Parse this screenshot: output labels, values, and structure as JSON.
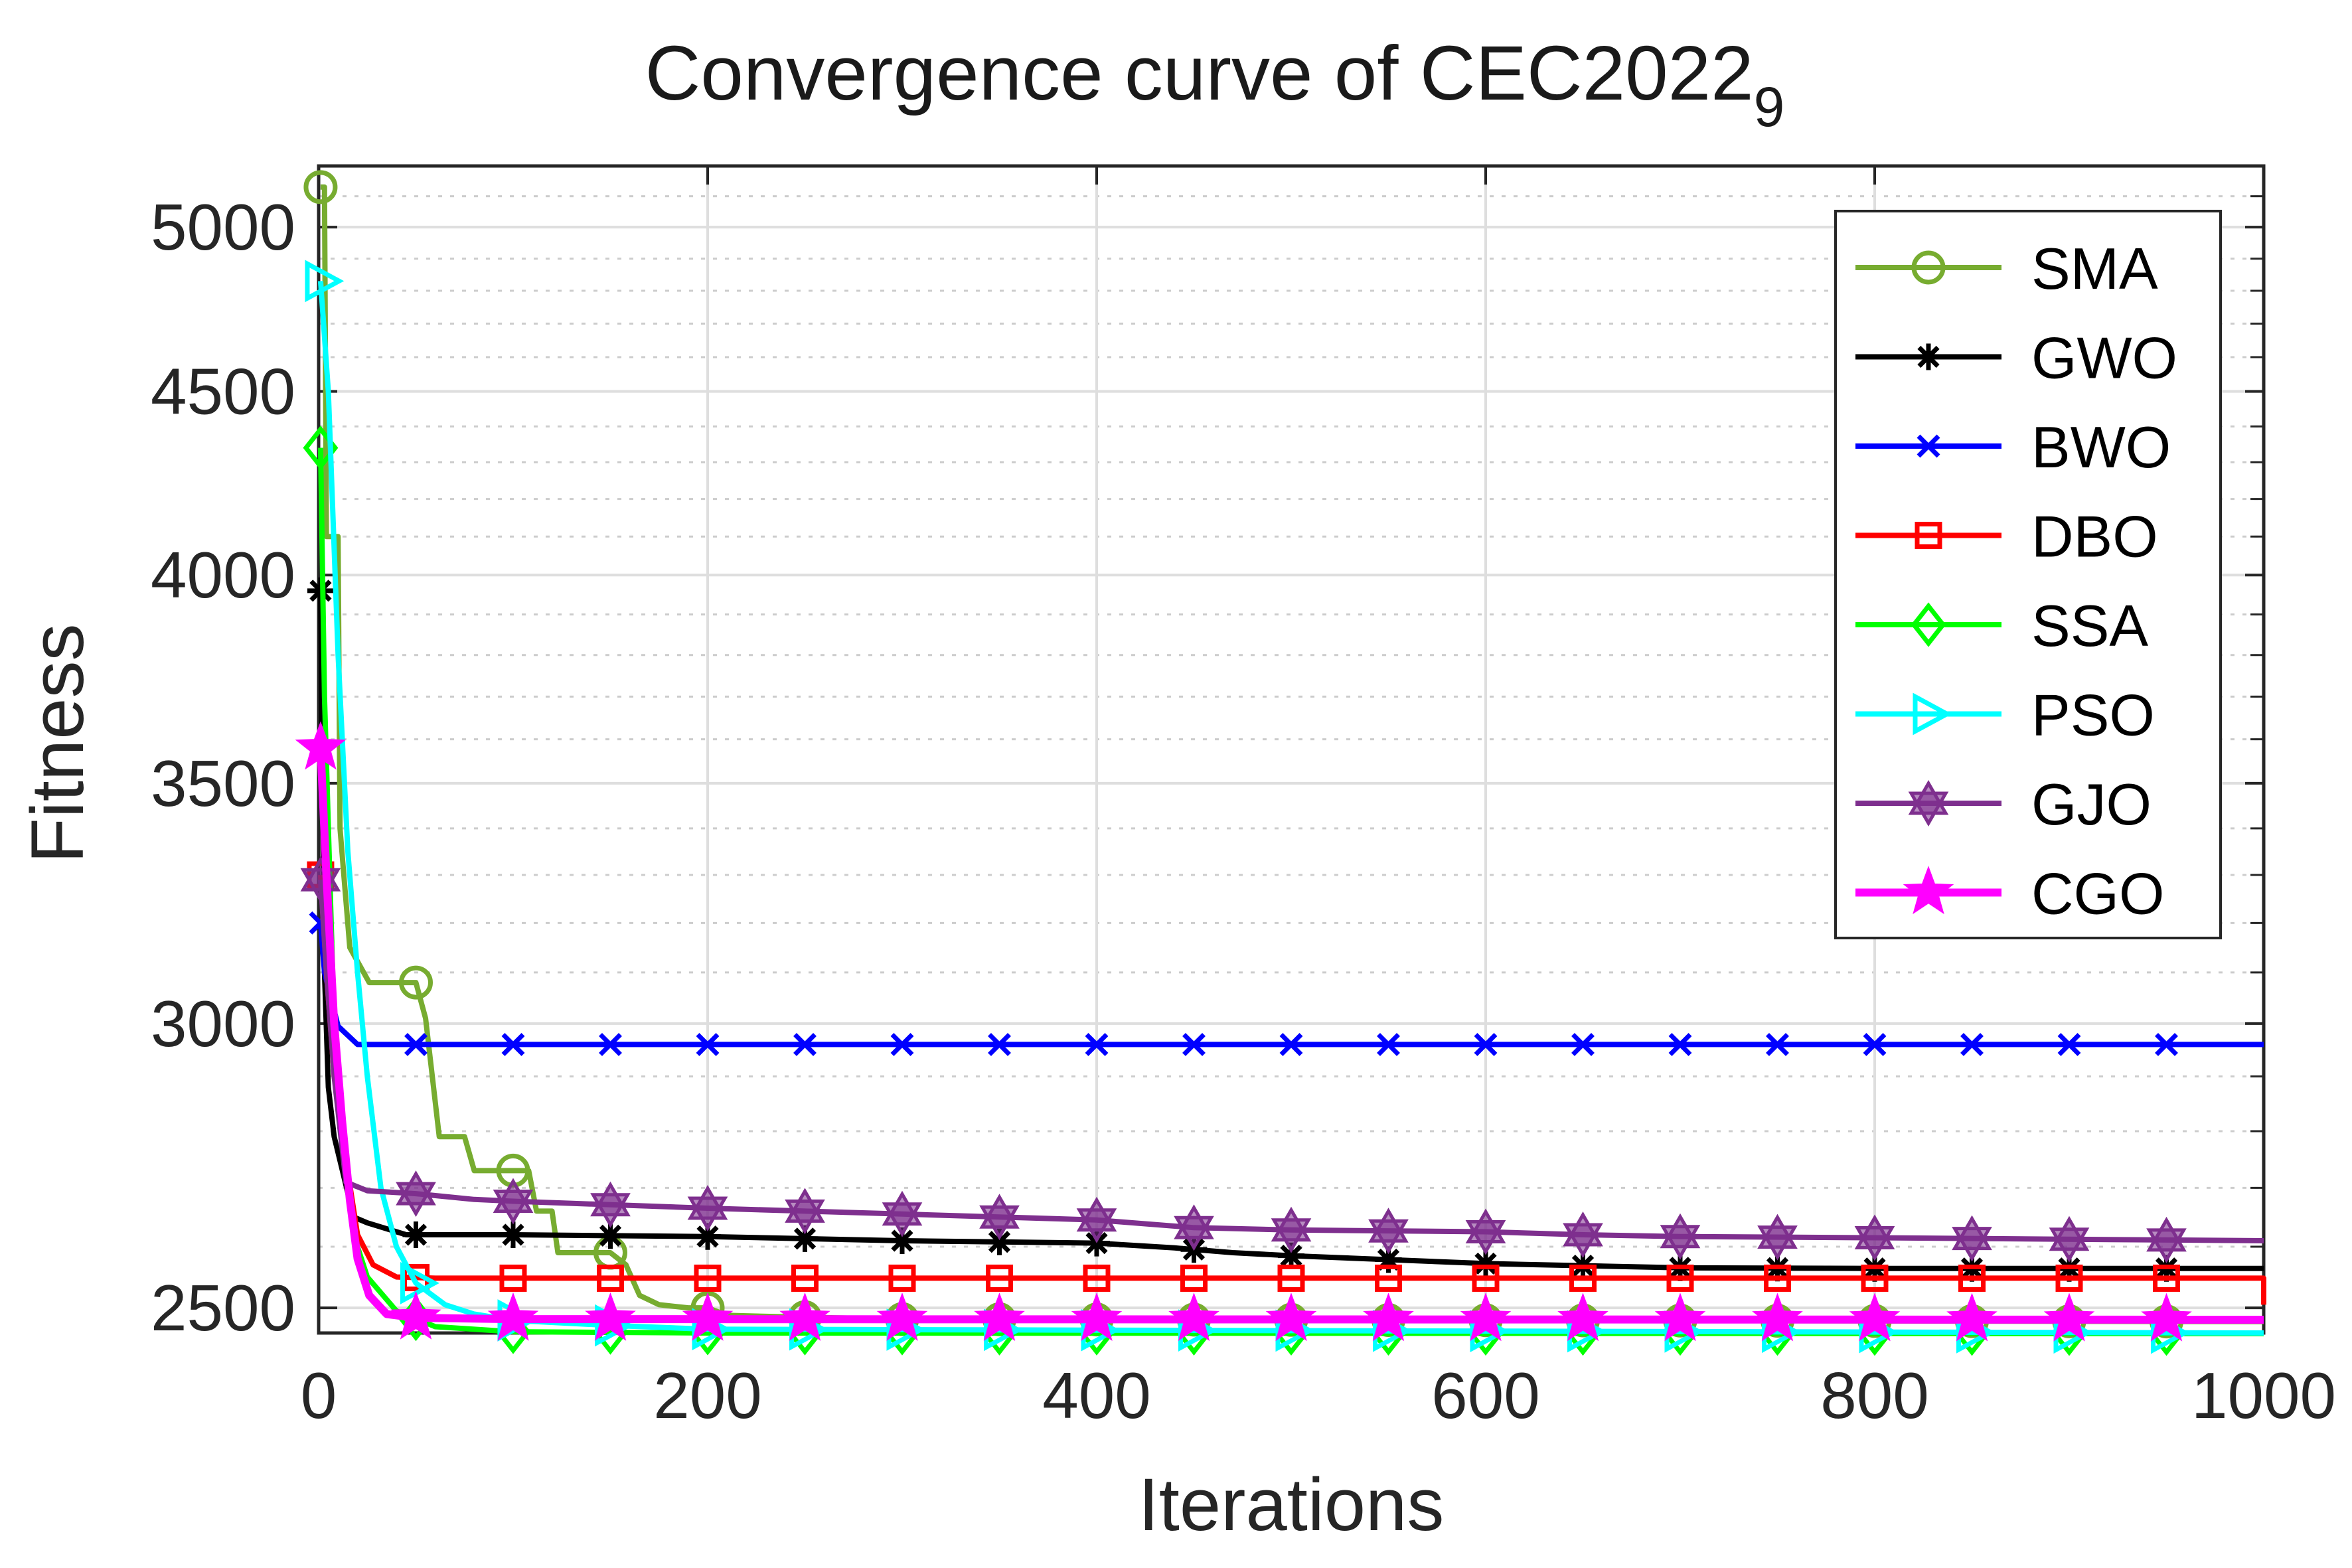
{
  "chart_data": {
    "type": "line",
    "title": "Convergence curve of CEC2022",
    "title_subscript": "9",
    "xlabel": "Iterations",
    "ylabel": "Fitness",
    "xlim": [
      0,
      1000
    ],
    "ylim": [
      2460,
      5200
    ],
    "yscale": "log",
    "xticks": [
      0,
      200,
      400,
      600,
      800,
      1000
    ],
    "yticks": [
      2500,
      3000,
      3500,
      4000,
      4500,
      5000
    ],
    "grid": true,
    "minor_grid": true,
    "legend_position": "top-right",
    "series": [
      {
        "name": "SMA",
        "color": "#77AC30",
        "marker": "circle",
        "points": [
          [
            1,
            5130
          ],
          [
            3,
            5130
          ],
          [
            4,
            4100
          ],
          [
            10,
            4100
          ],
          [
            11,
            3400
          ],
          [
            16,
            3150
          ],
          [
            26,
            3080
          ],
          [
            50,
            3080
          ],
          [
            55,
            3010
          ],
          [
            62,
            2790
          ],
          [
            75,
            2790
          ],
          [
            80,
            2730
          ],
          [
            108,
            2730
          ],
          [
            112,
            2660
          ],
          [
            120,
            2660
          ],
          [
            123,
            2590
          ],
          [
            150,
            2590
          ],
          [
            158,
            2570
          ],
          [
            165,
            2520
          ],
          [
            175,
            2505
          ],
          [
            190,
            2500
          ],
          [
            200,
            2500
          ],
          [
            210,
            2488
          ],
          [
            250,
            2485
          ],
          [
            300,
            2482
          ],
          [
            1000,
            2478
          ]
        ]
      },
      {
        "name": "GWO",
        "color": "#000000",
        "marker": "asterisk",
        "points": [
          [
            1,
            3960
          ],
          [
            3,
            3100
          ],
          [
            5,
            2880
          ],
          [
            8,
            2790
          ],
          [
            18,
            2650
          ],
          [
            25,
            2640
          ],
          [
            45,
            2620
          ],
          [
            100,
            2620
          ],
          [
            200,
            2617
          ],
          [
            300,
            2610
          ],
          [
            400,
            2606
          ],
          [
            440,
            2598
          ],
          [
            470,
            2590
          ],
          [
            500,
            2585
          ],
          [
            600,
            2572
          ],
          [
            700,
            2565
          ],
          [
            800,
            2564
          ],
          [
            1000,
            2564
          ]
        ]
      },
      {
        "name": "BWO",
        "color": "#0000FF",
        "marker": "x",
        "points": [
          [
            1,
            3200
          ],
          [
            3,
            3100
          ],
          [
            10,
            2995
          ],
          [
            20,
            2960
          ],
          [
            1000,
            2960
          ]
        ]
      },
      {
        "name": "DBO",
        "color": "#FF0000",
        "marker": "square",
        "points": [
          [
            1,
            3300
          ],
          [
            4,
            3100
          ],
          [
            8,
            2900
          ],
          [
            14,
            2750
          ],
          [
            20,
            2620
          ],
          [
            28,
            2570
          ],
          [
            40,
            2550
          ],
          [
            60,
            2548
          ],
          [
            1000,
            2548
          ],
          [
            1000,
            2505
          ]
        ]
      },
      {
        "name": "SSA",
        "color": "#00FF00",
        "marker": "diamond",
        "points": [
          [
            1,
            4340
          ],
          [
            3,
            3700
          ],
          [
            8,
            3000
          ],
          [
            12,
            2780
          ],
          [
            18,
            2620
          ],
          [
            25,
            2550
          ],
          [
            40,
            2495
          ],
          [
            60,
            2470
          ],
          [
            100,
            2462
          ],
          [
            200,
            2460
          ],
          [
            1000,
            2459
          ]
        ]
      },
      {
        "name": "PSO",
        "color": "#00FFFF",
        "marker": "triangle-right",
        "points": [
          [
            1,
            4830
          ],
          [
            5,
            4500
          ],
          [
            10,
            3800
          ],
          [
            15,
            3350
          ],
          [
            20,
            3100
          ],
          [
            25,
            2900
          ],
          [
            32,
            2700
          ],
          [
            40,
            2600
          ],
          [
            50,
            2540
          ],
          [
            65,
            2505
          ],
          [
            80,
            2490
          ],
          [
            100,
            2480
          ],
          [
            150,
            2472
          ],
          [
            200,
            2466
          ],
          [
            1000,
            2460
          ]
        ]
      },
      {
        "name": "GJO",
        "color": "#7E2F8E",
        "marker": "hexagram",
        "points": [
          [
            1,
            3290
          ],
          [
            4,
            3100
          ],
          [
            8,
            2900
          ],
          [
            14,
            2710
          ],
          [
            25,
            2695
          ],
          [
            50,
            2690
          ],
          [
            80,
            2680
          ],
          [
            100,
            2677
          ],
          [
            200,
            2665
          ],
          [
            300,
            2655
          ],
          [
            400,
            2645
          ],
          [
            450,
            2632
          ],
          [
            500,
            2628
          ],
          [
            600,
            2625
          ],
          [
            650,
            2620
          ],
          [
            700,
            2617
          ],
          [
            800,
            2615
          ],
          [
            1000,
            2610
          ]
        ]
      },
      {
        "name": "CGO",
        "color": "#FF00FF",
        "marker": "pentagram",
        "points": [
          [
            1,
            3580
          ],
          [
            4,
            3300
          ],
          [
            8,
            3000
          ],
          [
            12,
            2820
          ],
          [
            16,
            2680
          ],
          [
            20,
            2580
          ],
          [
            26,
            2520
          ],
          [
            35,
            2490
          ],
          [
            50,
            2484
          ],
          [
            100,
            2482
          ],
          [
            1000,
            2481
          ]
        ]
      }
    ],
    "legend": [
      "SMA",
      "GWO",
      "BWO",
      "DBO",
      "SSA",
      "PSO",
      "GJO",
      "CGO"
    ]
  }
}
